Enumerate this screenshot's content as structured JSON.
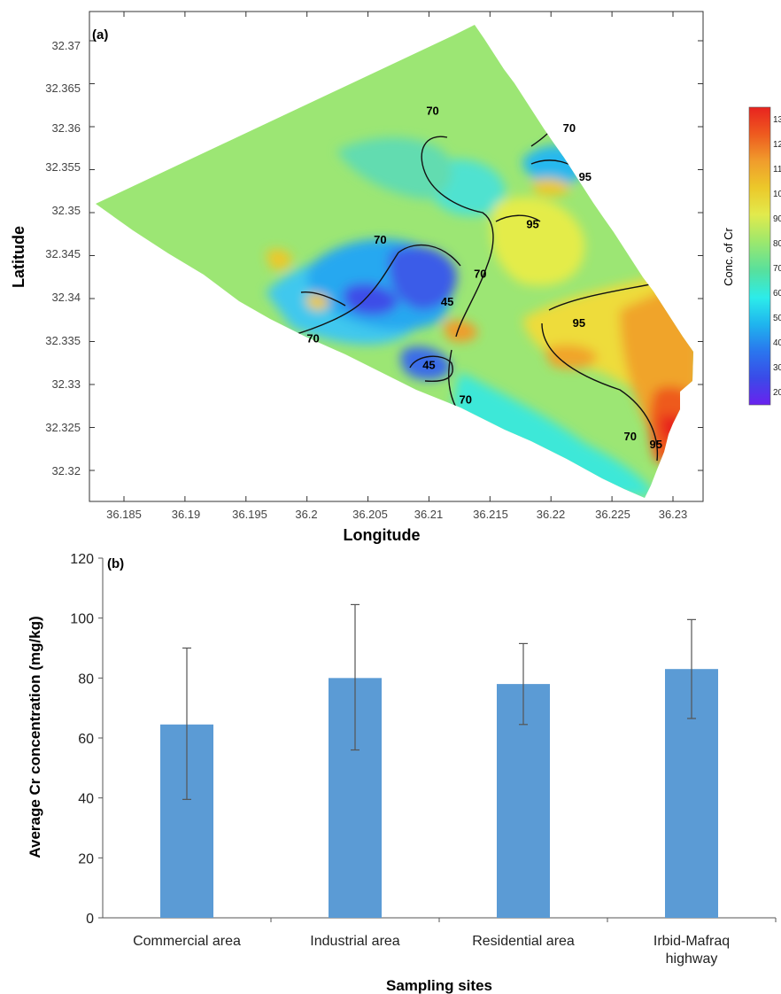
{
  "chart_data": [
    {
      "type": "heatmap",
      "panel_label": "(a)",
      "xlabel": "Longitude",
      "ylabel": "Latitude",
      "colorbar_label": "Conc. of Cr",
      "xlim": [
        36.181,
        36.235
      ],
      "ylim": [
        32.3165,
        32.3728
      ],
      "x_ticks": [
        "36.185",
        "36.19",
        "36.195",
        "36.2",
        "36.205",
        "36.21",
        "36.215",
        "36.22",
        "36.225",
        "36.23"
      ],
      "y_ticks": [
        "32.32",
        "32.325",
        "32.33",
        "32.335",
        "32.34",
        "32.345",
        "32.35",
        "32.355",
        "32.36",
        "32.365",
        "32.37"
      ],
      "colorbar_ticks": [
        "13",
        "12",
        "11",
        "10",
        "90",
        "80",
        "70",
        "60",
        "50",
        "40",
        "30",
        "20"
      ],
      "colorbar_colors": [
        "#e8231f",
        "#ee5a1f",
        "#f09c2c",
        "#ecc82a",
        "#e2ea4c",
        "#9ee86c",
        "#56e09e",
        "#2cecea",
        "#1fb4ee",
        "#2a76ee",
        "#3a4ae8",
        "#6a22ee"
      ],
      "contour_labels": [
        {
          "text": "70",
          "lon": 36.2103,
          "lat": 32.3614
        },
        {
          "text": "70",
          "lon": 36.2215,
          "lat": 32.3594
        },
        {
          "text": "95",
          "lon": 36.2228,
          "lat": 32.3537
        },
        {
          "text": "95",
          "lon": 36.2185,
          "lat": 32.3482
        },
        {
          "text": "70",
          "lon": 36.206,
          "lat": 32.3464
        },
        {
          "text": "70",
          "lon": 36.2142,
          "lat": 32.3424
        },
        {
          "text": "45",
          "lon": 36.2115,
          "lat": 32.3392
        },
        {
          "text": "70",
          "lon": 36.2005,
          "lat": 32.3349
        },
        {
          "text": "95",
          "lon": 36.2223,
          "lat": 32.3367
        },
        {
          "text": "45",
          "lon": 36.21,
          "lat": 32.3318
        },
        {
          "text": "70",
          "lon": 36.213,
          "lat": 32.3278
        },
        {
          "text": "70",
          "lon": 36.2265,
          "lat": 32.3235
        },
        {
          "text": "95",
          "lon": 36.2286,
          "lat": 32.3226
        }
      ]
    },
    {
      "type": "bar",
      "panel_label": "(b)",
      "xlabel": "Sampling sites",
      "ylabel": "Average Cr concentration (mg/kg)",
      "ylim": [
        0,
        120
      ],
      "y_ticks": [
        0,
        20,
        40,
        60,
        80,
        100,
        120
      ],
      "categories": [
        [
          "Commercial area"
        ],
        [
          "Industrial area"
        ],
        [
          "Residential area"
        ],
        [
          "Irbid-Mafraq",
          "highway"
        ]
      ],
      "values": [
        64.5,
        80,
        78,
        83
      ],
      "error_low": [
        39.5,
        56,
        64.5,
        66.5
      ],
      "error_high": [
        90,
        104.5,
        91.5,
        99.5
      ],
      "bar_color": "#5b9bd5"
    }
  ]
}
